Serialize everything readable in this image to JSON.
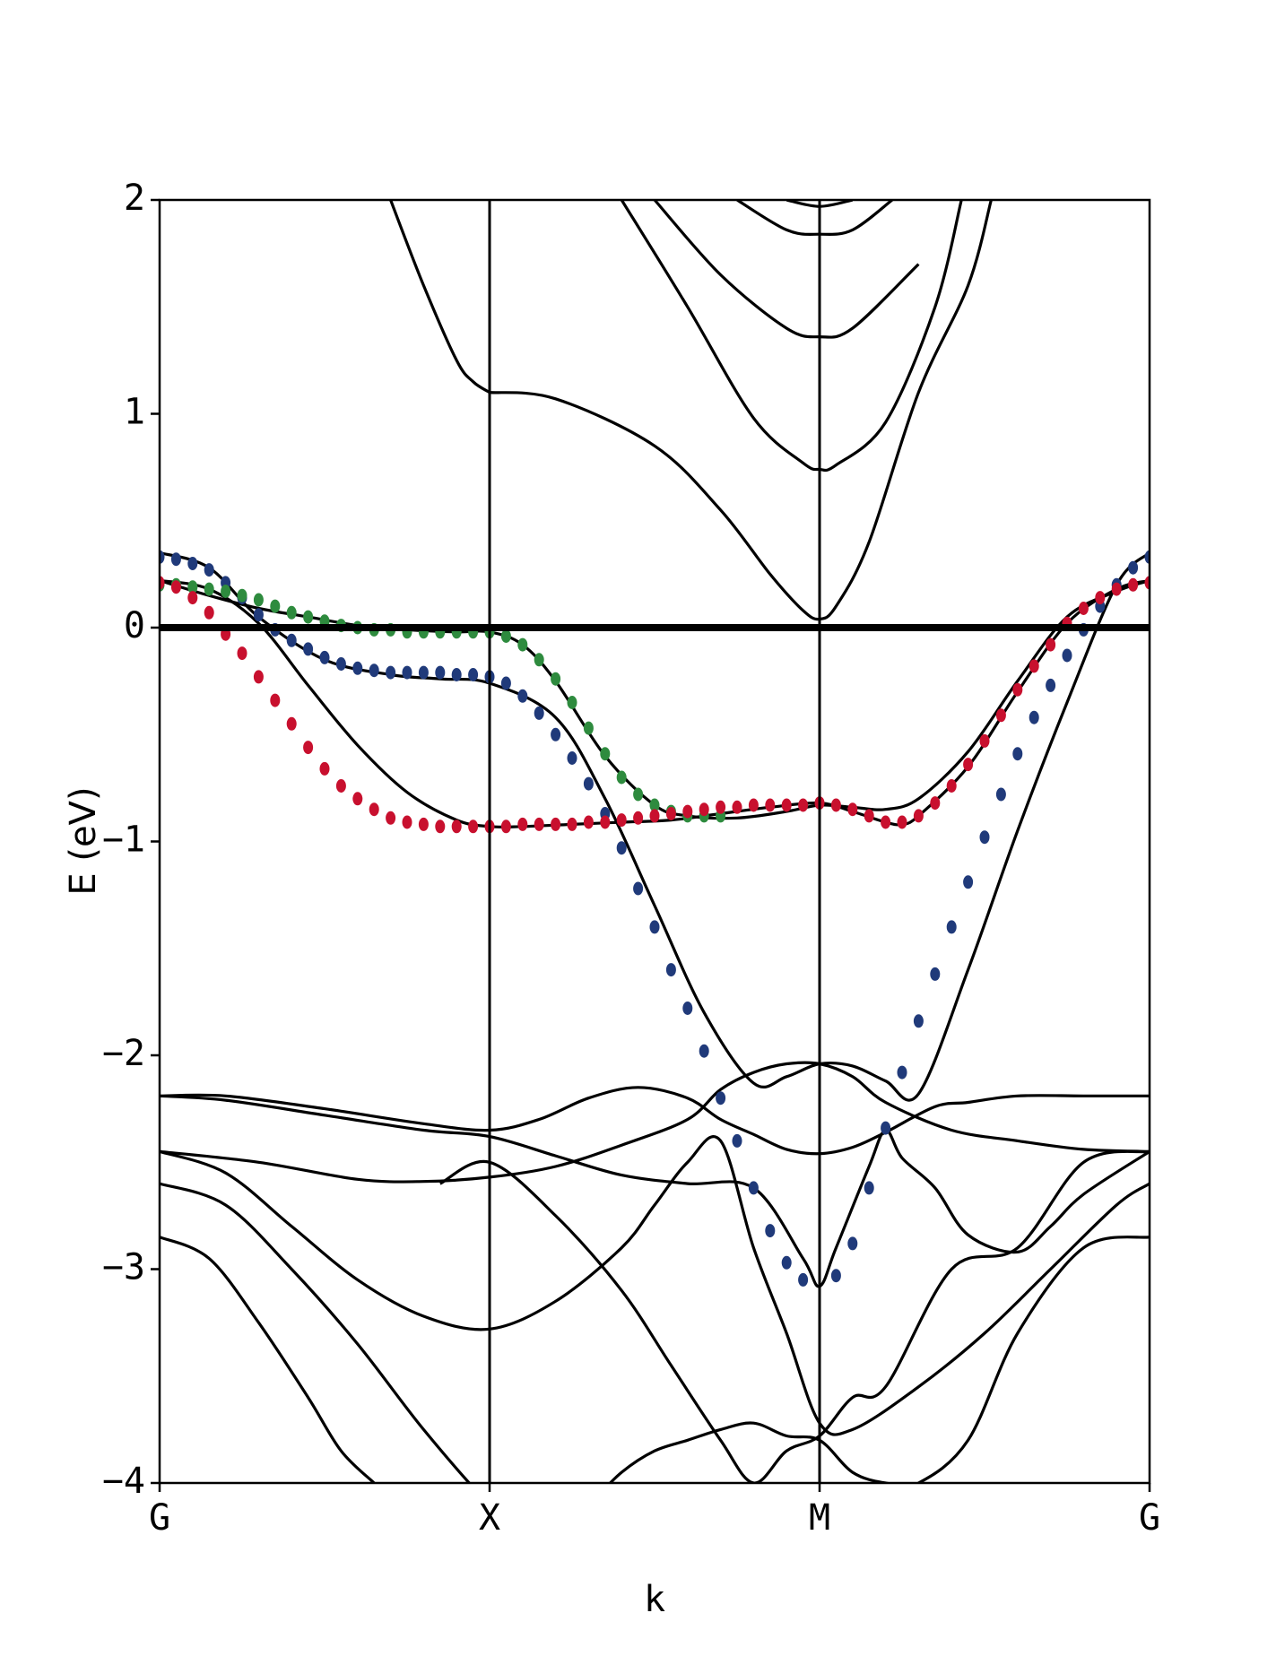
{
  "chart_data": {
    "type": "line",
    "xlabel": "k",
    "ylabel": "E (eV)",
    "ylim": [
      -4,
      2
    ],
    "xlim": [
      0,
      3
    ],
    "grid": false,
    "high_symmetry_points": [
      {
        "label": "G",
        "x": 0
      },
      {
        "label": "X",
        "x": 1
      },
      {
        "label": "M",
        "x": 2
      },
      {
        "label": "G",
        "x": 3
      }
    ],
    "y_ticks": [
      {
        "value": 2,
        "label": "2"
      },
      {
        "value": 1,
        "label": "1"
      },
      {
        "value": 0,
        "label": "0"
      },
      {
        "value": -1,
        "label": "−1"
      },
      {
        "value": -2,
        "label": "−2"
      },
      {
        "value": -3,
        "label": "−3"
      },
      {
        "value": -4,
        "label": "−4"
      }
    ],
    "fermi_level": 0,
    "bands": [
      {
        "x": [
          0.7,
          0.8,
          0.9,
          0.95,
          1.0
        ],
        "y": [
          2.0,
          1.6,
          1.25,
          1.15,
          1.1
        ]
      },
      {
        "x": [
          1.0,
          1.2,
          1.5,
          1.7,
          1.85,
          1.95,
          2.0,
          2.05,
          2.15,
          2.3,
          2.45,
          2.52
        ],
        "y": [
          1.1,
          1.07,
          0.85,
          0.55,
          0.25,
          0.08,
          0.04,
          0.1,
          0.4,
          1.1,
          1.6,
          2.0
        ]
      },
      {
        "x": [
          1.4,
          1.6,
          1.8,
          1.95,
          2.0,
          2.05,
          2.2,
          2.35,
          2.43
        ],
        "y": [
          2.0,
          1.5,
          0.98,
          0.77,
          0.74,
          0.76,
          0.96,
          1.5,
          2.0
        ]
      },
      {
        "x": [
          1.5,
          1.7,
          1.9,
          2.0,
          2.1,
          2.3
        ],
        "y": [
          2.0,
          1.65,
          1.4,
          1.36,
          1.4,
          1.7
        ]
      },
      {
        "x": [
          1.75,
          1.9,
          2.0,
          2.1,
          2.22
        ],
        "y": [
          2.0,
          1.86,
          1.84,
          1.86,
          2.0
        ]
      },
      {
        "x": [
          1.9,
          2.0,
          2.1
        ],
        "y": [
          2.0,
          1.97,
          2.0
        ]
      },
      {
        "x": [
          0,
          0.15,
          0.3,
          0.5,
          0.7,
          0.85,
          1.0,
          1.2,
          1.35,
          1.5,
          1.65,
          1.8,
          1.9,
          2.0,
          2.1,
          2.2,
          2.3,
          2.45,
          2.6,
          2.75,
          2.9,
          3.0
        ],
        "y": [
          0.35,
          0.28,
          0.05,
          -0.15,
          -0.22,
          -0.24,
          -0.26,
          -0.42,
          -0.8,
          -1.3,
          -1.8,
          -2.13,
          -2.1,
          -2.04,
          -2.05,
          -2.12,
          -2.18,
          -1.6,
          -0.95,
          -0.35,
          0.2,
          0.35
        ]
      },
      {
        "x": [
          0,
          0.15,
          0.3,
          0.45,
          0.6,
          0.75,
          0.9,
          1.0,
          1.1,
          1.2,
          1.35,
          1.5,
          1.6,
          1.75,
          1.9,
          2.0,
          2.1,
          2.2,
          2.3,
          2.45,
          2.6,
          2.75,
          2.9,
          3.0
        ],
        "y": [
          0.22,
          0.15,
          0.09,
          0.05,
          0.01,
          -0.01,
          -0.02,
          -0.02,
          -0.08,
          -0.25,
          -0.6,
          -0.83,
          -0.88,
          -0.89,
          -0.86,
          -0.83,
          -0.84,
          -0.85,
          -0.8,
          -0.58,
          -0.25,
          0.05,
          0.17,
          0.22
        ]
      },
      {
        "x": [
          0,
          0.15,
          0.3,
          0.45,
          0.6,
          0.75,
          0.9,
          1.0,
          1.1,
          1.25,
          1.4,
          1.55,
          1.7,
          1.85,
          2.0,
          2.1,
          2.2,
          2.25,
          2.3,
          2.45,
          2.6,
          2.75,
          2.9,
          3.0
        ],
        "y": [
          0.22,
          0.18,
          0.02,
          -0.27,
          -0.55,
          -0.77,
          -0.9,
          -0.93,
          -0.93,
          -0.92,
          -0.91,
          -0.9,
          -0.87,
          -0.84,
          -0.82,
          -0.86,
          -0.91,
          -0.92,
          -0.88,
          -0.65,
          -0.3,
          0.02,
          0.18,
          0.22
        ]
      },
      {
        "x": [
          0,
          0.2,
          0.5,
          0.8,
          1.0,
          1.15,
          1.3,
          1.45,
          1.6,
          1.7,
          1.8,
          1.9,
          2.0,
          2.1,
          2.2,
          2.35,
          2.45,
          2.6,
          2.8,
          3.0
        ],
        "y": [
          -2.19,
          -2.19,
          -2.25,
          -2.32,
          -2.35,
          -2.3,
          -2.2,
          -2.15,
          -2.2,
          -2.3,
          -2.37,
          -2.44,
          -2.46,
          -2.43,
          -2.36,
          -2.24,
          -2.22,
          -2.19,
          -2.19,
          -2.19
        ]
      },
      {
        "x": [
          0,
          0.2,
          0.5,
          0.8,
          1.0,
          1.2,
          1.4,
          1.6,
          1.8,
          1.95,
          2.0,
          2.05,
          2.15,
          2.2,
          2.25,
          2.35,
          2.45,
          2.6,
          2.7,
          2.8,
          3.0
        ],
        "y": [
          -2.19,
          -2.21,
          -2.28,
          -2.35,
          -2.38,
          -2.47,
          -2.56,
          -2.6,
          -2.62,
          -2.95,
          -3.08,
          -2.9,
          -2.52,
          -2.35,
          -2.48,
          -2.62,
          -2.84,
          -2.92,
          -2.8,
          -2.65,
          -2.45
        ]
      },
      {
        "x": [
          0,
          0.3,
          0.6,
          0.8,
          1.0,
          1.2,
          1.4,
          1.6,
          1.7,
          1.8,
          1.9,
          2.0,
          2.1,
          2.2,
          2.4,
          2.6,
          2.8,
          3.0
        ],
        "y": [
          -2.45,
          -2.5,
          -2.58,
          -2.59,
          -2.57,
          -2.52,
          -2.42,
          -2.3,
          -2.16,
          -2.08,
          -2.04,
          -2.04,
          -2.1,
          -2.22,
          -2.35,
          -2.4,
          -2.44,
          -2.45
        ]
      },
      {
        "x": [
          0,
          0.2,
          0.4,
          0.6,
          0.8,
          1.0,
          1.2,
          1.4,
          1.5,
          1.6,
          1.7,
          1.8,
          1.9,
          2.0,
          2.1,
          2.3,
          2.5,
          2.7,
          2.9,
          3.0
        ],
        "y": [
          -2.45,
          -2.55,
          -2.8,
          -3.05,
          -3.22,
          -3.28,
          -3.15,
          -2.9,
          -2.7,
          -2.5,
          -2.4,
          -2.9,
          -3.3,
          -3.72,
          -3.75,
          -3.55,
          -3.3,
          -3.0,
          -2.7,
          -2.6
        ]
      },
      {
        "x": [
          0,
          0.2,
          0.4,
          0.6,
          0.8,
          1.0,
          1.1,
          1.2,
          1.3,
          1.4,
          1.5,
          1.6,
          1.7,
          1.8,
          1.9,
          2.0,
          2.1,
          2.2,
          2.3,
          2.45,
          2.6,
          2.8,
          3.0
        ],
        "y": [
          -2.6,
          -2.7,
          -3.0,
          -3.35,
          -3.75,
          -4.1,
          -4.2,
          -4.2,
          -4.1,
          -3.95,
          -3.85,
          -3.8,
          -3.75,
          -3.72,
          -3.78,
          -3.8,
          -3.95,
          -4.0,
          -4.0,
          -3.8,
          -3.3,
          -2.9,
          -2.85
        ]
      },
      {
        "x": [
          0,
          0.15,
          0.3,
          0.45,
          0.55,
          0.65
        ],
        "y": [
          -2.85,
          -2.95,
          -3.25,
          -3.6,
          -3.85,
          -4.0
        ]
      },
      {
        "x": [
          0.85,
          1.0,
          1.2,
          1.4,
          1.55,
          1.7,
          1.8,
          1.9,
          2.0,
          2.1,
          2.2,
          2.4,
          2.6,
          2.8,
          3.0
        ],
        "y": [
          -2.6,
          -2.5,
          -2.75,
          -3.1,
          -3.45,
          -3.8,
          -4.0,
          -3.85,
          -3.78,
          -3.6,
          -3.55,
          -3.0,
          -2.9,
          -2.5,
          -2.45
        ]
      }
    ],
    "series": [
      {
        "name": "",
        "color": "#203a7a",
        "points": [
          [
            0,
            0.33
          ],
          [
            0.05,
            0.32
          ],
          [
            0.1,
            0.3
          ],
          [
            0.15,
            0.27
          ],
          [
            0.2,
            0.21
          ],
          [
            0.25,
            0.14
          ],
          [
            0.3,
            0.06
          ],
          [
            0.35,
            -0.01
          ],
          [
            0.4,
            -0.06
          ],
          [
            0.45,
            -0.1
          ],
          [
            0.5,
            -0.14
          ],
          [
            0.55,
            -0.17
          ],
          [
            0.6,
            -0.19
          ],
          [
            0.65,
            -0.2
          ],
          [
            0.7,
            -0.21
          ],
          [
            0.75,
            -0.21
          ],
          [
            0.8,
            -0.21
          ],
          [
            0.85,
            -0.21
          ],
          [
            0.9,
            -0.22
          ],
          [
            0.95,
            -0.22
          ],
          [
            1.0,
            -0.23
          ],
          [
            1.05,
            -0.26
          ],
          [
            1.1,
            -0.32
          ],
          [
            1.15,
            -0.4
          ],
          [
            1.2,
            -0.5
          ],
          [
            1.25,
            -0.61
          ],
          [
            1.3,
            -0.73
          ],
          [
            1.35,
            -0.87
          ],
          [
            1.4,
            -1.03
          ],
          [
            1.45,
            -1.22
          ],
          [
            1.5,
            -1.4
          ],
          [
            1.55,
            -1.6
          ],
          [
            1.6,
            -1.78
          ],
          [
            1.65,
            -1.98
          ],
          [
            1.7,
            -2.2
          ],
          [
            1.75,
            -2.4
          ],
          [
            1.8,
            -2.62
          ],
          [
            1.85,
            -2.82
          ],
          [
            1.9,
            -2.97
          ],
          [
            1.95,
            -3.05
          ],
          [
            2.05,
            -3.03
          ],
          [
            2.1,
            -2.88
          ],
          [
            2.15,
            -2.62
          ],
          [
            2.2,
            -2.34
          ],
          [
            2.25,
            -2.08
          ],
          [
            2.3,
            -1.84
          ],
          [
            2.35,
            -1.62
          ],
          [
            2.4,
            -1.4
          ],
          [
            2.45,
            -1.19
          ],
          [
            2.5,
            -0.98
          ],
          [
            2.55,
            -0.78
          ],
          [
            2.6,
            -0.59
          ],
          [
            2.65,
            -0.42
          ],
          [
            2.7,
            -0.27
          ],
          [
            2.75,
            -0.13
          ],
          [
            2.8,
            -0.01
          ],
          [
            2.85,
            0.1
          ],
          [
            2.9,
            0.2
          ],
          [
            2.95,
            0.28
          ],
          [
            3.0,
            0.33
          ]
        ]
      },
      {
        "name": "",
        "color": "#2e8b3e",
        "points": [
          [
            0,
            0.2
          ],
          [
            0.05,
            0.2
          ],
          [
            0.1,
            0.19
          ],
          [
            0.15,
            0.18
          ],
          [
            0.2,
            0.17
          ],
          [
            0.25,
            0.15
          ],
          [
            0.3,
            0.13
          ],
          [
            0.35,
            0.1
          ],
          [
            0.4,
            0.07
          ],
          [
            0.45,
            0.05
          ],
          [
            0.5,
            0.03
          ],
          [
            0.55,
            0.01
          ],
          [
            0.6,
            0.0
          ],
          [
            0.65,
            -0.01
          ],
          [
            0.7,
            -0.01
          ],
          [
            0.75,
            -0.02
          ],
          [
            0.8,
            -0.02
          ],
          [
            0.85,
            -0.02
          ],
          [
            0.9,
            -0.02
          ],
          [
            0.95,
            -0.02
          ],
          [
            1.0,
            -0.02
          ],
          [
            1.05,
            -0.04
          ],
          [
            1.1,
            -0.08
          ],
          [
            1.15,
            -0.15
          ],
          [
            1.2,
            -0.24
          ],
          [
            1.25,
            -0.35
          ],
          [
            1.3,
            -0.47
          ],
          [
            1.35,
            -0.59
          ],
          [
            1.4,
            -0.7
          ],
          [
            1.45,
            -0.78
          ],
          [
            1.5,
            -0.83
          ],
          [
            1.55,
            -0.86
          ],
          [
            1.6,
            -0.88
          ],
          [
            1.65,
            -0.88
          ],
          [
            1.7,
            -0.88
          ]
        ]
      },
      {
        "name": "",
        "color": "#c8102e",
        "points": [
          [
            0,
            0.21
          ],
          [
            0.05,
            0.19
          ],
          [
            0.1,
            0.14
          ],
          [
            0.15,
            0.07
          ],
          [
            0.2,
            -0.03
          ],
          [
            0.25,
            -0.12
          ],
          [
            0.3,
            -0.23
          ],
          [
            0.35,
            -0.34
          ],
          [
            0.4,
            -0.45
          ],
          [
            0.45,
            -0.56
          ],
          [
            0.5,
            -0.66
          ],
          [
            0.55,
            -0.74
          ],
          [
            0.6,
            -0.8
          ],
          [
            0.65,
            -0.85
          ],
          [
            0.7,
            -0.89
          ],
          [
            0.75,
            -0.91
          ],
          [
            0.8,
            -0.92
          ],
          [
            0.85,
            -0.93
          ],
          [
            0.9,
            -0.93
          ],
          [
            0.95,
            -0.93
          ],
          [
            1.0,
            -0.93
          ],
          [
            1.05,
            -0.93
          ],
          [
            1.1,
            -0.92
          ],
          [
            1.15,
            -0.92
          ],
          [
            1.2,
            -0.92
          ],
          [
            1.25,
            -0.92
          ],
          [
            1.3,
            -0.91
          ],
          [
            1.35,
            -0.91
          ],
          [
            1.4,
            -0.9
          ],
          [
            1.45,
            -0.89
          ],
          [
            1.5,
            -0.88
          ],
          [
            1.55,
            -0.87
          ],
          [
            1.6,
            -0.86
          ],
          [
            1.65,
            -0.85
          ],
          [
            1.7,
            -0.84
          ],
          [
            1.75,
            -0.84
          ],
          [
            1.8,
            -0.83
          ],
          [
            1.85,
            -0.83
          ],
          [
            1.9,
            -0.83
          ],
          [
            1.95,
            -0.83
          ],
          [
            2.0,
            -0.82
          ],
          [
            2.05,
            -0.83
          ],
          [
            2.1,
            -0.85
          ],
          [
            2.15,
            -0.88
          ],
          [
            2.2,
            -0.91
          ],
          [
            2.25,
            -0.91
          ],
          [
            2.3,
            -0.88
          ],
          [
            2.35,
            -0.82
          ],
          [
            2.4,
            -0.74
          ],
          [
            2.45,
            -0.64
          ],
          [
            2.5,
            -0.53
          ],
          [
            2.55,
            -0.41
          ],
          [
            2.6,
            -0.29
          ],
          [
            2.65,
            -0.18
          ],
          [
            2.7,
            -0.08
          ],
          [
            2.75,
            0.02
          ],
          [
            2.8,
            0.09
          ],
          [
            2.85,
            0.14
          ],
          [
            2.9,
            0.18
          ],
          [
            2.95,
            0.2
          ],
          [
            3.0,
            0.21
          ]
        ]
      }
    ]
  }
}
